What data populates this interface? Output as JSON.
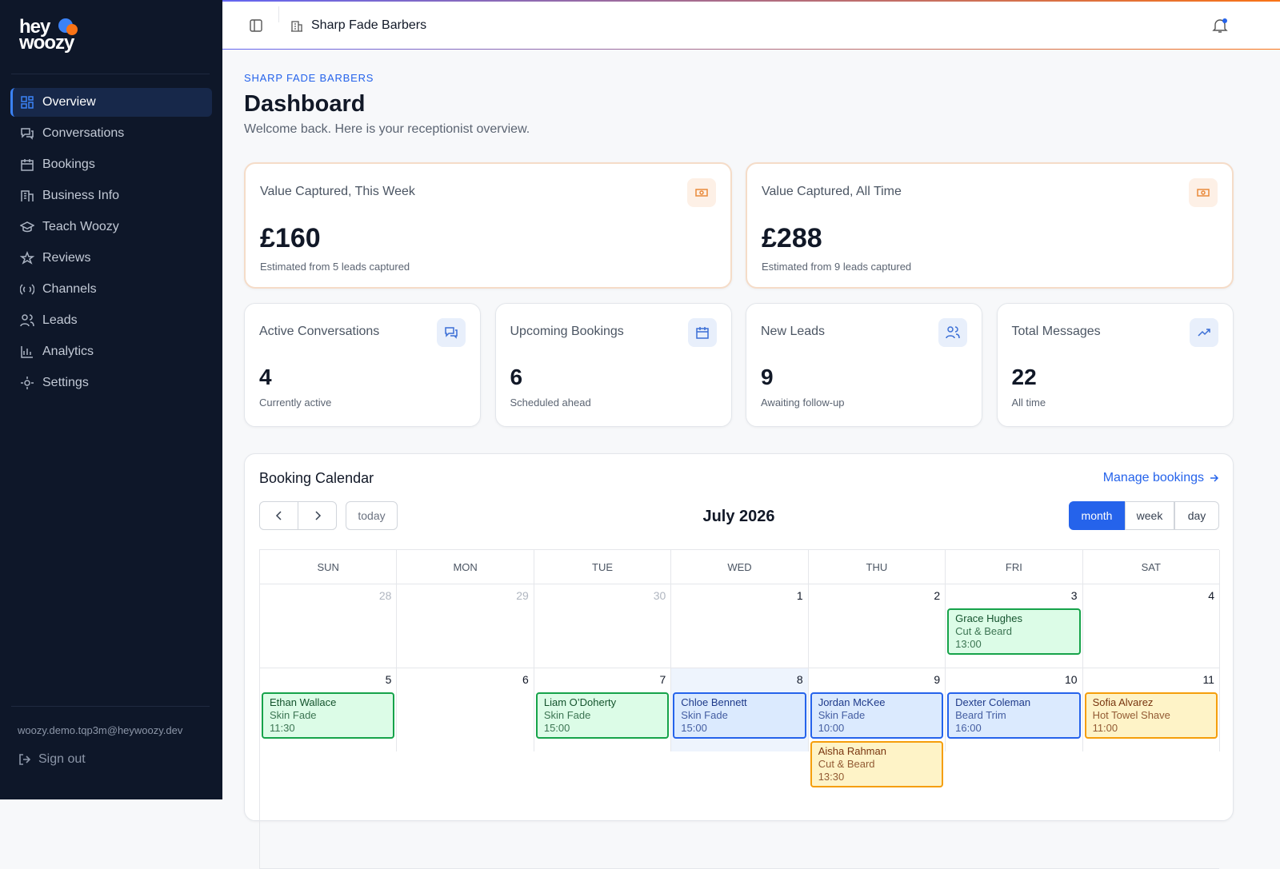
{
  "brand": {
    "line1": "hey",
    "line2": "woozy"
  },
  "nav": [
    {
      "label": "Overview",
      "active": true
    },
    {
      "label": "Conversations",
      "active": false
    },
    {
      "label": "Bookings",
      "active": false
    },
    {
      "label": "Business Info",
      "active": false
    },
    {
      "label": "Teach Woozy",
      "active": false
    },
    {
      "label": "Reviews",
      "active": false
    },
    {
      "label": "Channels",
      "active": false
    },
    {
      "label": "Leads",
      "active": false
    },
    {
      "label": "Analytics",
      "active": false
    },
    {
      "label": "Settings",
      "active": false
    }
  ],
  "account": {
    "email": "woozy.demo.tqp3m@heywoozy.dev",
    "sign_out": "Sign out"
  },
  "topbar": {
    "business": "Sharp Fade Barbers"
  },
  "header": {
    "eyebrow": "SHARP FADE BARBERS",
    "title": "Dashboard",
    "subtitle": "Welcome back. Here is your receptionist overview."
  },
  "value_cards": [
    {
      "label": "Value Captured, This Week",
      "value": "£160",
      "note": "Estimated from 5 leads captured"
    },
    {
      "label": "Value Captured, All Time",
      "value": "£288",
      "note": "Estimated from 9 leads captured"
    }
  ],
  "stat_cards": [
    {
      "label": "Active Conversations",
      "value": "4",
      "note": "Currently active"
    },
    {
      "label": "Upcoming Bookings",
      "value": "6",
      "note": "Scheduled ahead"
    },
    {
      "label": "New Leads",
      "value": "9",
      "note": "Awaiting follow-up"
    },
    {
      "label": "Total Messages",
      "value": "22",
      "note": "All time"
    }
  ],
  "calendar": {
    "title": "Booking Calendar",
    "link": "Manage bookings",
    "today_button": "today",
    "month_label": "July 2026",
    "views": [
      {
        "label": "month",
        "active": true
      },
      {
        "label": "week",
        "active": false
      },
      {
        "label": "day",
        "active": false
      }
    ],
    "weekdays": [
      "SUN",
      "MON",
      "TUE",
      "WED",
      "THU",
      "FRI",
      "SAT"
    ],
    "weeks": [
      {
        "days": [
          {
            "date": "28",
            "muted": true,
            "today": false,
            "events": []
          },
          {
            "date": "29",
            "muted": true,
            "today": false,
            "events": []
          },
          {
            "date": "30",
            "muted": true,
            "today": false,
            "events": []
          },
          {
            "date": "1",
            "muted": false,
            "today": false,
            "events": []
          },
          {
            "date": "2",
            "muted": false,
            "today": false,
            "events": []
          },
          {
            "date": "3",
            "muted": false,
            "today": false,
            "events": [
              {
                "name": "Grace Hughes",
                "service": "Cut & Beard",
                "time": "13:00",
                "color": "green"
              }
            ]
          },
          {
            "date": "4",
            "muted": false,
            "today": false,
            "events": []
          }
        ]
      },
      {
        "days": [
          {
            "date": "5",
            "muted": false,
            "today": false,
            "events": [
              {
                "name": "Ethan Wallace",
                "service": "Skin Fade",
                "time": "11:30",
                "color": "green"
              }
            ]
          },
          {
            "date": "6",
            "muted": false,
            "today": false,
            "events": []
          },
          {
            "date": "7",
            "muted": false,
            "today": false,
            "events": [
              {
                "name": "Liam O’Doherty",
                "service": "Skin Fade",
                "time": "15:00",
                "color": "green"
              }
            ]
          },
          {
            "date": "8",
            "muted": false,
            "today": true,
            "events": [
              {
                "name": "Chloe Bennett",
                "service": "Skin Fade",
                "time": "15:00",
                "color": "blue"
              }
            ]
          },
          {
            "date": "9",
            "muted": false,
            "today": false,
            "events": [
              {
                "name": "Jordan McKee",
                "service": "Skin Fade",
                "time": "10:00",
                "color": "blue"
              },
              {
                "name": "Aisha Rahman",
                "service": "Cut & Beard",
                "time": "13:30",
                "color": "yellow"
              }
            ]
          },
          {
            "date": "10",
            "muted": false,
            "today": false,
            "events": [
              {
                "name": "Dexter Coleman",
                "service": "Beard Trim",
                "time": "16:00",
                "color": "blue"
              }
            ]
          },
          {
            "date": "11",
            "muted": false,
            "today": false,
            "events": [
              {
                "name": "Sofia Alvarez",
                "service": "Hot Towel Shave",
                "time": "11:00",
                "color": "yellow"
              }
            ]
          }
        ]
      }
    ]
  }
}
